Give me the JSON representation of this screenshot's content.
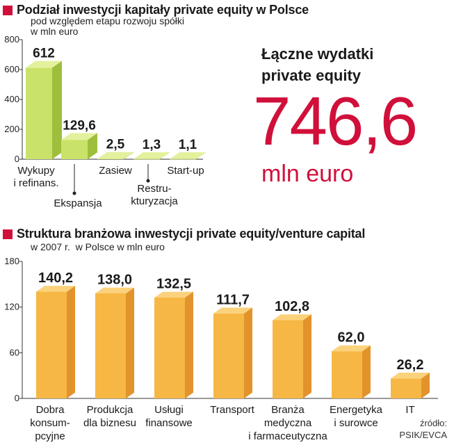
{
  "colors": {
    "accent": "#d0103a",
    "green_front": "#c9e36a",
    "green_side": "#9fbf3c",
    "green_top": "#e3f19d",
    "orange_front": "#f6b744",
    "orange_side": "#e2932c",
    "orange_top": "#fbd27c"
  },
  "chart_data": [
    {
      "type": "bar",
      "title": "Podział inwestycji kapitały private equity w Polsce",
      "subtitle_lines": [
        "pod względem etapu rozwoju spółki",
        "w mln euro"
      ],
      "categories": [
        "Wykupy i refinans.",
        "Ekspansja",
        "Zasiew",
        "Restrukturyzacja",
        "Start-up"
      ],
      "category_label_lines": [
        [
          "Wykupy",
          "i refinans."
        ],
        [
          "Ekspansja"
        ],
        [
          "Zasiew"
        ],
        [
          "Restru-",
          "kturyzacja"
        ],
        [
          "Start-up"
        ]
      ],
      "values": [
        612,
        129.6,
        2.5,
        1.3,
        1.1
      ],
      "value_labels": [
        "612",
        "129,6",
        "2,5",
        "1,3",
        "1,1"
      ],
      "ylim": [
        0,
        800
      ],
      "yticks": [
        0,
        200,
        400,
        600,
        800
      ],
      "ytick_labels": [
        "0",
        "200",
        "400",
        "600",
        "800"
      ],
      "grid": false
    },
    {
      "type": "bar",
      "title": "Struktura branżowa inwestycji private equity/venture capital",
      "subtitle": "w 2007 r.  w Polsce w mln euro",
      "categories": [
        "Dobra konsumpcyjne",
        "Produkcja dla biznesu",
        "Usługi finansowe",
        "Transport",
        "Branża medyczna i farmaceutyczna",
        "Energetyka i surowce",
        "IT"
      ],
      "category_label_lines": [
        [
          "Dobra",
          "konsum-",
          "pcyjne"
        ],
        [
          "Produkcja",
          "dla biznesu"
        ],
        [
          "Usługi",
          "finansowe"
        ],
        [
          "Transport"
        ],
        [
          "Branża",
          "medyczna",
          "i farmaceutyczna"
        ],
        [
          "Energetyka",
          "i surowce"
        ],
        [
          "IT"
        ]
      ],
      "values": [
        140.2,
        138.0,
        132.5,
        111.7,
        102.8,
        62.0,
        26.2
      ],
      "value_labels": [
        "140,2",
        "138,0",
        "132,5",
        "111,7",
        "102,8",
        "62,0",
        "26,2"
      ],
      "ylim": [
        0,
        180
      ],
      "yticks": [
        0,
        60,
        120,
        180
      ],
      "ytick_labels": [
        "0",
        "60",
        "120",
        "180"
      ],
      "grid": false
    }
  ],
  "total": {
    "label_lines": [
      "Łączne wydatki",
      "private equity"
    ],
    "value": "746,6",
    "unit": "mln euro"
  },
  "source": {
    "label": "źródło:",
    "text": "PSIK/EVCA"
  }
}
